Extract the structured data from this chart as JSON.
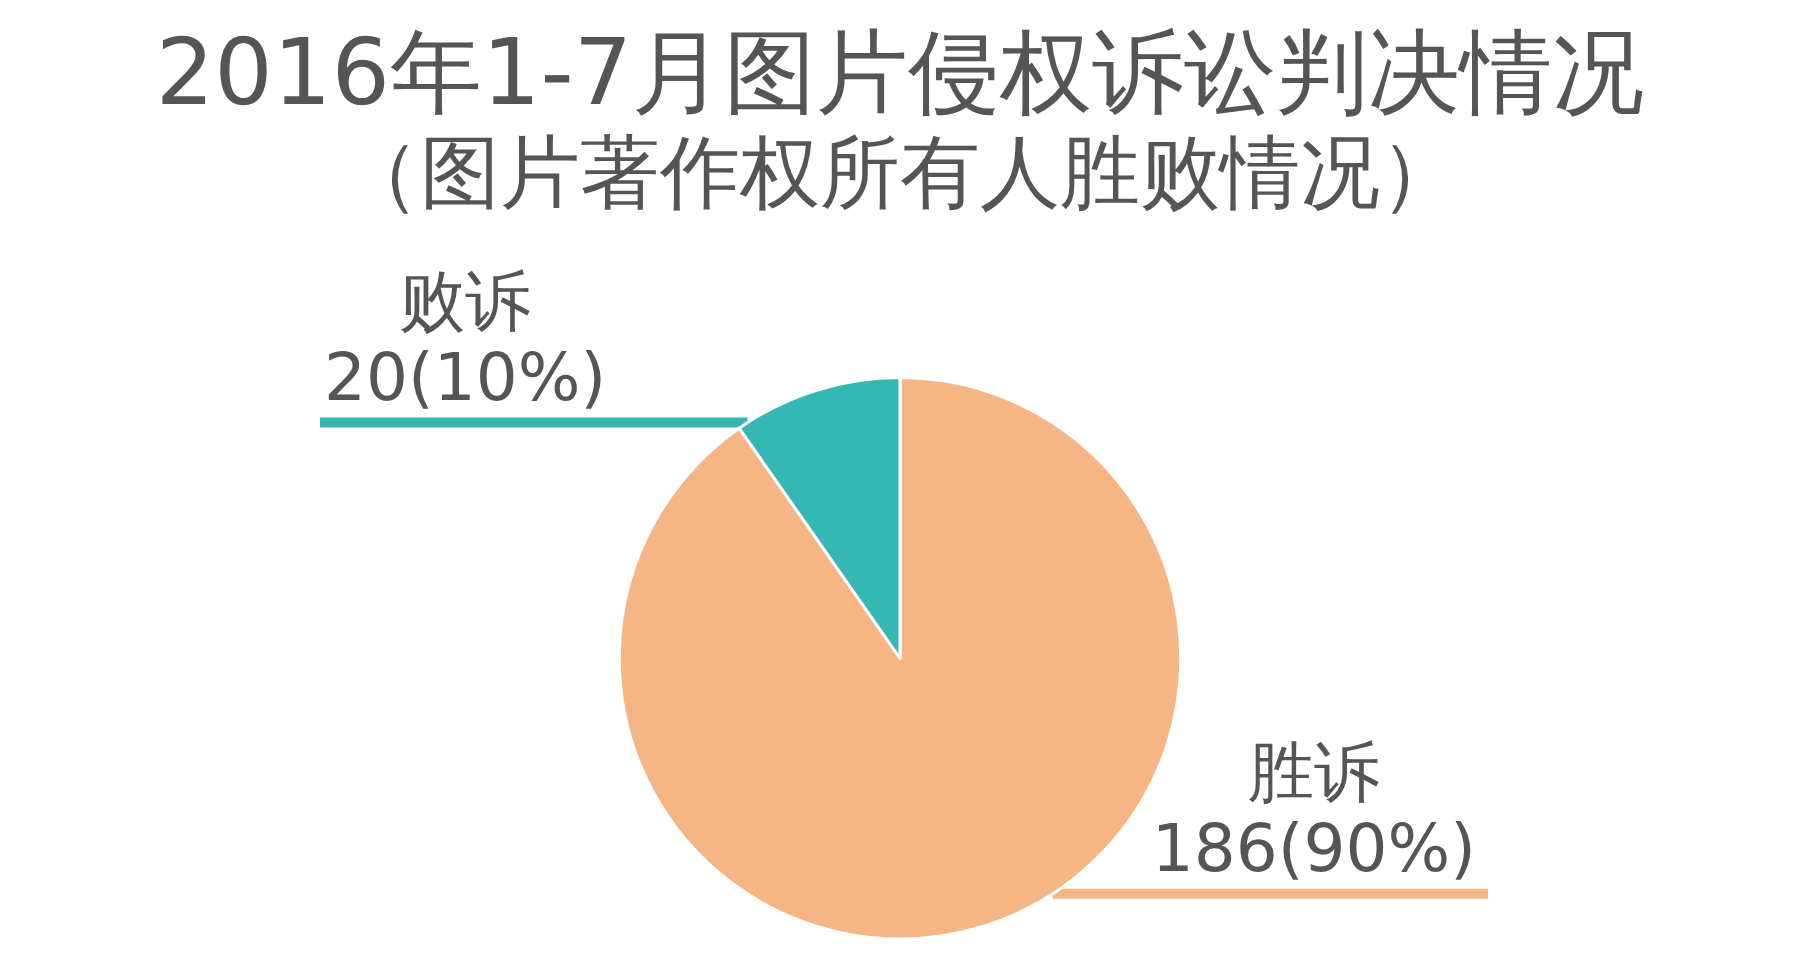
{
  "chart_data": {
    "type": "pie",
    "title": "2016年1-7月图片侵权诉讼判决情况",
    "subtitle": "（图片著作权所有人胜败情况）",
    "categories": [
      "胜诉",
      "败诉"
    ],
    "values": [
      186,
      20
    ],
    "colors": [
      "#f5b584",
      "#35b8b4"
    ],
    "value_labels": [
      "186(90%)",
      "20(10%)"
    ]
  }
}
